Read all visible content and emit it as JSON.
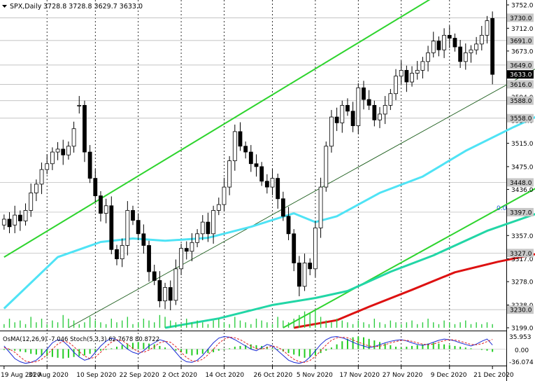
{
  "header": {
    "symbol_label": "SPX,Daily",
    "ohlc": "3728.8 3728.8 3629.7 3633.0"
  },
  "oscillator": {
    "label": "OsMA(12,26,9) -7.046  Stoch(5,3,3) 62.7678 80.8722",
    "scale_top": "35.953",
    "scale_zero": "0.00",
    "scale_bottom": "-36.074",
    "scale_top_value": 35.953,
    "scale_bottom_value": -36.074
  },
  "channel_label": "0.0",
  "chart_data": {
    "type": "candlestick",
    "title": "SPX,Daily",
    "ylim": [
      3199,
      3752
    ],
    "y_ticks": [
      "3752.0",
      "3712.0",
      "3673.0",
      "3634.0",
      "3594.0",
      "3554.0",
      "3515.0",
      "3475.0",
      "3436.0",
      "3397.0",
      "3357.0",
      "3317.0",
      "3278.0",
      "3238.0",
      "3199.0"
    ],
    "price_tags": [
      {
        "label": "3730.0",
        "value": 3730.0
      },
      {
        "label": "3691.0",
        "value": 3691.0
      },
      {
        "label": "3649.0",
        "value": 3649.0
      },
      {
        "label": "3616.0",
        "value": 3616.0
      },
      {
        "label": "3588.0",
        "value": 3588.0
      },
      {
        "label": "3558.0",
        "value": 3558.0
      },
      {
        "label": "3448.0",
        "value": 3448.0
      },
      {
        "label": "3397.0",
        "value": 3397.0
      },
      {
        "label": "3327.0",
        "value": 3327.0
      },
      {
        "label": "3230.0",
        "value": 3230.0
      }
    ],
    "current_price": {
      "label": "3633.0",
      "value": 3633.0
    },
    "x_labels": [
      "19 Aug 2020",
      "31 Aug 2020",
      "10 Sep 2020",
      "22 Sep 2020",
      "2 Oct 2020",
      "14 Oct 2020",
      "26 Oct 2020",
      "5 Nov 2020",
      "17 Nov 2020",
      "27 Nov 2020",
      "9 Dec 2020",
      "21 Dec 2020"
    ],
    "closes": [
      3385,
      3372,
      3392,
      3382,
      3400,
      3430,
      3445,
      3470,
      3480,
      3500,
      3505,
      3495,
      3510,
      3540,
      3580,
      3500,
      3455,
      3425,
      3395,
      3408,
      3333,
      3317,
      3340,
      3400,
      3383,
      3360,
      3340,
      3295,
      3280,
      3245,
      3268,
      3246,
      3300,
      3335,
      3330,
      3345,
      3360,
      3380,
      3360,
      3400,
      3410,
      3440,
      3485,
      3535,
      3510,
      3500,
      3480,
      3475,
      3450,
      3440,
      3455,
      3420,
      3390,
      3360,
      3310,
      3270,
      3310,
      3300,
      3370,
      3440,
      3510,
      3560,
      3550,
      3580,
      3570,
      3545,
      3610,
      3590,
      3580,
      3555,
      3565,
      3580,
      3600,
      3630,
      3640,
      3620,
      3635,
      3640,
      3655,
      3670,
      3690,
      3675,
      3700,
      3695,
      3680,
      3655,
      3670,
      3675,
      3685,
      3700,
      3725,
      3633
    ],
    "opens": [
      3375,
      3385,
      3375,
      3392,
      3382,
      3400,
      3430,
      3445,
      3470,
      3480,
      3500,
      3505,
      3495,
      3510,
      3580,
      3580,
      3500,
      3455,
      3425,
      3395,
      3408,
      3333,
      3317,
      3340,
      3400,
      3383,
      3360,
      3340,
      3295,
      3280,
      3245,
      3268,
      3246,
      3300,
      3335,
      3330,
      3345,
      3360,
      3380,
      3360,
      3400,
      3410,
      3440,
      3485,
      3535,
      3510,
      3500,
      3480,
      3475,
      3450,
      3440,
      3455,
      3420,
      3390,
      3360,
      3310,
      3270,
      3310,
      3300,
      3370,
      3440,
      3510,
      3560,
      3550,
      3580,
      3570,
      3545,
      3610,
      3590,
      3580,
      3555,
      3565,
      3580,
      3600,
      3630,
      3640,
      3620,
      3635,
      3640,
      3655,
      3670,
      3690,
      3675,
      3700,
      3695,
      3680,
      3655,
      3670,
      3675,
      3685,
      3700,
      3728.8
    ],
    "ema_cyan": [
      {
        "x": 0,
        "y": 3232
      },
      {
        "x": 10,
        "y": 3320
      },
      {
        "x": 18,
        "y": 3346
      },
      {
        "x": 24,
        "y": 3352
      },
      {
        "x": 30,
        "y": 3348
      },
      {
        "x": 38,
        "y": 3353
      },
      {
        "x": 46,
        "y": 3372
      },
      {
        "x": 54,
        "y": 3395
      },
      {
        "x": 58,
        "y": 3380
      },
      {
        "x": 62,
        "y": 3390
      },
      {
        "x": 70,
        "y": 3430
      },
      {
        "x": 78,
        "y": 3458
      },
      {
        "x": 86,
        "y": 3502
      },
      {
        "x": 95,
        "y": 3543
      },
      {
        "x": 100,
        "y": 3564
      }
    ],
    "ema_teal": [
      {
        "x": 30,
        "y": 3199
      },
      {
        "x": 40,
        "y": 3215
      },
      {
        "x": 50,
        "y": 3238
      },
      {
        "x": 58,
        "y": 3250
      },
      {
        "x": 64,
        "y": 3262
      },
      {
        "x": 72,
        "y": 3295
      },
      {
        "x": 80,
        "y": 3323
      },
      {
        "x": 90,
        "y": 3365
      },
      {
        "x": 100,
        "y": 3397
      }
    ],
    "ema_red": [
      {
        "x": 54,
        "y": 3199
      },
      {
        "x": 62,
        "y": 3212
      },
      {
        "x": 68,
        "y": 3235
      },
      {
        "x": 76,
        "y": 3264
      },
      {
        "x": 84,
        "y": 3294
      },
      {
        "x": 92,
        "y": 3312
      },
      {
        "x": 100,
        "y": 3327
      }
    ],
    "channel_upper": [
      {
        "x": 0,
        "y": 3320
      },
      {
        "x": 80,
        "y": 3765
      }
    ],
    "channel_lower": [
      {
        "x": 52,
        "y": 3199
      },
      {
        "x": 105,
        "y": 3468
      }
    ],
    "channel_mid": [
      {
        "x": 12,
        "y": 3199
      },
      {
        "x": 105,
        "y": 3673
      }
    ],
    "volumes": [
      2,
      5,
      3,
      4,
      2,
      6,
      3,
      5,
      2,
      4,
      3,
      7,
      5,
      4,
      2,
      3,
      6,
      4,
      3,
      2,
      5,
      3,
      4,
      6,
      2,
      3,
      5,
      4,
      3,
      7,
      6,
      4,
      3,
      2,
      5,
      3,
      4,
      3,
      2,
      4,
      5,
      3,
      2,
      6,
      4,
      3,
      2,
      5,
      4,
      3,
      2,
      6,
      4,
      3,
      5,
      7,
      9,
      8,
      10,
      6,
      4,
      3,
      5,
      4,
      3,
      2,
      4,
      3,
      2,
      5,
      3,
      2,
      4,
      3,
      2,
      3,
      4,
      2,
      3,
      5,
      3,
      2,
      4,
      3,
      2,
      3,
      4,
      2,
      3,
      2,
      3,
      2
    ],
    "osma": [
      -2,
      -3,
      -4,
      -6,
      -8,
      -12,
      -14,
      -16,
      -18,
      -20,
      -22,
      -24,
      -22,
      -20,
      -18,
      -16,
      -12,
      -8,
      -4,
      -2,
      2,
      6,
      10,
      14,
      16,
      18,
      16,
      14,
      12,
      8,
      4,
      0,
      -4,
      -8,
      -12,
      -16,
      -14,
      -12,
      -10,
      -8,
      -4,
      -2,
      2,
      6,
      8,
      10,
      12,
      10,
      8,
      6,
      2,
      -2,
      -6,
      -10,
      -14,
      -18,
      -22,
      -20,
      -16,
      -10,
      -4,
      4,
      12,
      20,
      26,
      30,
      32,
      30,
      26,
      22,
      18,
      14,
      10,
      6,
      4,
      6,
      8,
      10,
      12,
      14,
      16,
      14,
      12,
      10,
      8,
      6,
      4,
      2,
      0,
      -2,
      -4,
      -7
    ],
    "stoch_main": [
      60,
      40,
      20,
      10,
      5,
      8,
      15,
      30,
      50,
      70,
      80,
      75,
      60,
      40,
      25,
      15,
      20,
      40,
      60,
      75,
      85,
      80,
      65,
      50,
      40,
      35,
      45,
      60,
      70,
      80,
      75,
      60,
      40,
      20,
      10,
      8,
      15,
      30,
      50,
      70,
      85,
      90,
      88,
      80,
      70,
      60,
      50,
      45,
      55,
      65,
      60,
      45,
      30,
      15,
      8,
      5,
      10,
      25,
      45,
      65,
      80,
      88,
      90,
      86,
      80,
      72,
      65,
      60,
      55,
      58,
      64,
      70,
      75,
      78,
      80,
      76,
      70,
      65,
      62,
      66,
      72,
      78,
      82,
      80,
      76,
      70,
      65,
      60,
      66,
      75,
      82,
      63
    ],
    "stoch_signal": [
      55,
      50,
      40,
      25,
      12,
      8,
      10,
      18,
      32,
      50,
      66,
      75,
      72,
      58,
      42,
      28,
      20,
      25,
      40,
      58,
      72,
      80,
      77,
      66,
      52,
      42,
      40,
      47,
      58,
      70,
      75,
      72,
      58,
      40,
      23,
      13,
      11,
      18,
      32,
      50,
      68,
      82,
      88,
      86,
      80,
      70,
      60,
      52,
      50,
      55,
      60,
      56,
      46,
      30,
      18,
      10,
      8,
      14,
      27,
      45,
      63,
      78,
      86,
      88,
      86,
      79,
      72,
      66,
      60,
      58,
      59,
      64,
      70,
      74,
      78,
      78,
      75,
      70,
      66,
      64,
      66,
      72,
      77,
      80,
      79,
      75,
      70,
      65,
      64,
      67,
      74,
      81
    ]
  }
}
